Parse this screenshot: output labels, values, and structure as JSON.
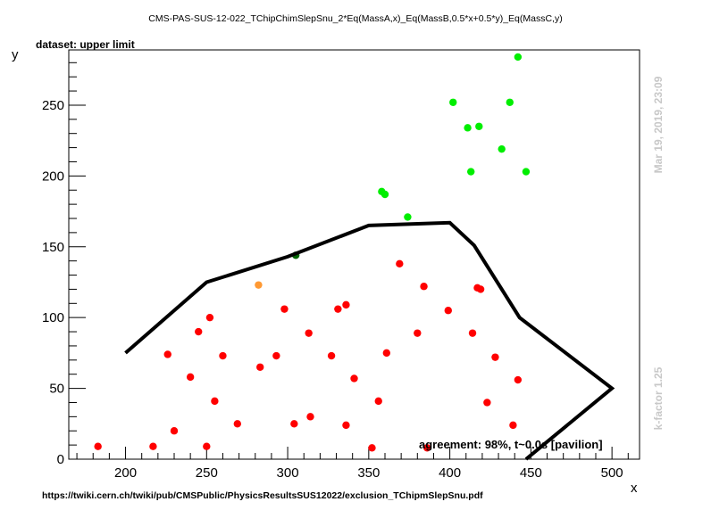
{
  "chart_data": {
    "type": "scatter",
    "title": "CMS-PAS-SUS-12-022_TChipChimSlepSnu_2*Eq(MassA,x)_Eq(MassB,0.5*x+0.5*y)_Eq(MassC,y)",
    "dataset_label": "dataset: upper limit",
    "xlabel": "x",
    "ylabel": "y",
    "xlim": [
      165,
      517
    ],
    "ylim": [
      0,
      289
    ],
    "x_ticks": [
      200,
      250,
      300,
      350,
      400,
      450,
      500
    ],
    "y_ticks": [
      0,
      50,
      100,
      150,
      200,
      250
    ],
    "x_tick_labels": [
      "200",
      "250",
      "300",
      "350",
      "400",
      "450",
      "500"
    ],
    "y_tick_labels": [
      "0",
      "50",
      "100",
      "150",
      "200",
      "250"
    ],
    "grid": false,
    "side_label_top": "Mar 19, 2019, 23:09",
    "side_label_bottom": "k-factor 1.25",
    "agreement_text": "agreement: 98%, t~0.0s [pavilion]",
    "footer_url": "https://twiki.cern.ch/twiki/pub/CMSPublic/PhysicsResultsSUS12022/exclusion_TChipmSlepSnu.pdf",
    "colors": {
      "excluded": "#ff0000",
      "allowed": "#00ee00",
      "borderline_excluded": "#ff9933",
      "borderline_allowed": "#006600",
      "exclusion_line": "#000000",
      "side_text": "#c8c8c8"
    },
    "series": [
      {
        "color": "#ff0000",
        "points": [
          [
            183,
            9
          ],
          [
            217,
            9
          ],
          [
            250,
            9
          ],
          [
            352,
            8
          ],
          [
            386,
            8
          ],
          [
            230,
            20
          ],
          [
            269,
            25
          ],
          [
            304,
            25
          ],
          [
            336,
            24
          ],
          [
            439,
            24
          ],
          [
            314,
            30
          ],
          [
            255,
            41
          ],
          [
            356,
            41
          ],
          [
            423,
            40
          ],
          [
            240,
            58
          ],
          [
            341,
            57
          ],
          [
            442,
            56
          ],
          [
            226,
            74
          ],
          [
            260,
            73
          ],
          [
            293,
            73
          ],
          [
            327,
            73
          ],
          [
            361,
            75
          ],
          [
            428,
            72
          ],
          [
            283,
            65
          ],
          [
            245,
            90
          ],
          [
            313,
            89
          ],
          [
            380,
            89
          ],
          [
            414,
            89
          ],
          [
            252,
            100
          ],
          [
            298,
            106
          ],
          [
            331,
            106
          ],
          [
            336,
            109
          ],
          [
            399,
            105
          ],
          [
            384,
            122
          ],
          [
            417,
            121
          ],
          [
            419,
            120
          ],
          [
            369,
            138
          ]
        ]
      },
      {
        "color": "#00ee00",
        "points": [
          [
            442,
            284
          ],
          [
            402,
            252
          ],
          [
            437,
            252
          ],
          [
            411,
            234
          ],
          [
            418,
            235
          ],
          [
            432,
            219
          ],
          [
            413,
            203
          ],
          [
            447,
            203
          ],
          [
            358,
            189
          ],
          [
            360,
            187
          ],
          [
            374,
            171
          ]
        ]
      },
      {
        "color": "#ff9933",
        "points": [
          [
            282,
            123
          ]
        ]
      },
      {
        "color": "#006600",
        "points": [
          [
            305,
            144
          ]
        ]
      }
    ],
    "exclusion_line": [
      [
        200,
        75
      ],
      [
        250,
        125
      ],
      [
        300,
        143
      ],
      [
        350,
        165
      ],
      [
        400,
        167
      ],
      [
        415,
        151
      ],
      [
        443,
        100
      ],
      [
        500,
        50
      ],
      [
        447,
        0
      ]
    ]
  }
}
